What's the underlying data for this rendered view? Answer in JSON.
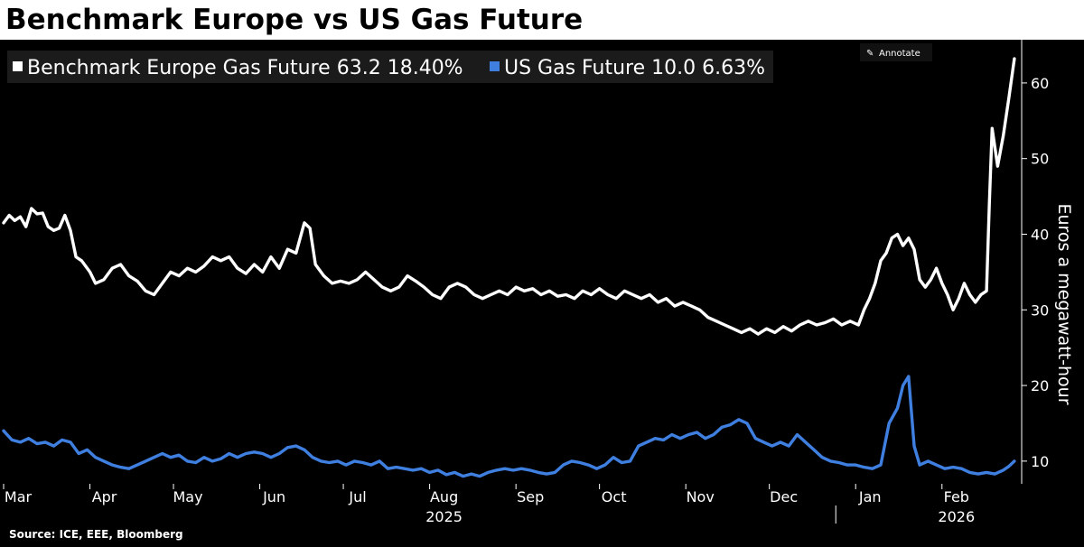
{
  "chart_data": {
    "type": "line",
    "title": "Benchmark Europe vs US Gas Future",
    "ylabel": "Euros a megawatt-hour",
    "ylim": [
      7,
      65
    ],
    "yticks": [
      10,
      20,
      30,
      40,
      50,
      60
    ],
    "x_range": [
      "2025-03-01",
      "2026-02-28"
    ],
    "month_labels": [
      {
        "label": "Mar",
        "date": "2025-03-01"
      },
      {
        "label": "Apr",
        "date": "2025-04-01"
      },
      {
        "label": "May",
        "date": "2025-05-01"
      },
      {
        "label": "Jun",
        "date": "2025-06-01"
      },
      {
        "label": "Jul",
        "date": "2025-07-01"
      },
      {
        "label": "Aug",
        "date": "2025-08-01"
      },
      {
        "label": "Sep",
        "date": "2025-09-01"
      },
      {
        "label": "Oct",
        "date": "2025-10-01"
      },
      {
        "label": "Nov",
        "date": "2025-11-01"
      },
      {
        "label": "Dec",
        "date": "2025-12-01"
      },
      {
        "label": "Jan",
        "date": "2026-01-01"
      },
      {
        "label": "Feb",
        "date": "2026-02-01"
      }
    ],
    "year_labels": [
      {
        "label": "2025",
        "date": "2025-08-01"
      },
      {
        "label": "2026",
        "date": "2026-02-01"
      }
    ],
    "year_divider": "2026-01-01",
    "grid": false,
    "legend_position": "top-left",
    "series": [
      {
        "name": "Benchmark Europe Gas Future",
        "last_value": "63.2",
        "change": "18.40%",
        "color": "#ffffff",
        "points": [
          [
            "2025-03-01",
            41.5
          ],
          [
            "2025-03-03",
            42.5
          ],
          [
            "2025-03-05",
            41.8
          ],
          [
            "2025-03-07",
            42.3
          ],
          [
            "2025-03-09",
            41.0
          ],
          [
            "2025-03-11",
            43.4
          ],
          [
            "2025-03-13",
            42.7
          ],
          [
            "2025-03-15",
            42.8
          ],
          [
            "2025-03-17",
            41.0
          ],
          [
            "2025-03-19",
            40.5
          ],
          [
            "2025-03-21",
            40.8
          ],
          [
            "2025-03-23",
            42.5
          ],
          [
            "2025-03-25",
            40.5
          ],
          [
            "2025-03-27",
            37.0
          ],
          [
            "2025-03-29",
            36.5
          ],
          [
            "2025-04-01",
            35.0
          ],
          [
            "2025-04-03",
            33.5
          ],
          [
            "2025-04-06",
            34.0
          ],
          [
            "2025-04-09",
            35.5
          ],
          [
            "2025-04-12",
            36.0
          ],
          [
            "2025-04-15",
            34.5
          ],
          [
            "2025-04-18",
            33.8
          ],
          [
            "2025-04-21",
            32.5
          ],
          [
            "2025-04-24",
            32.0
          ],
          [
            "2025-04-27",
            33.5
          ],
          [
            "2025-04-30",
            35.0
          ],
          [
            "2025-05-03",
            34.5
          ],
          [
            "2025-05-06",
            35.5
          ],
          [
            "2025-05-09",
            35.0
          ],
          [
            "2025-05-12",
            35.8
          ],
          [
            "2025-05-15",
            37.0
          ],
          [
            "2025-05-18",
            36.5
          ],
          [
            "2025-05-21",
            37.0
          ],
          [
            "2025-05-24",
            35.5
          ],
          [
            "2025-05-27",
            34.8
          ],
          [
            "2025-05-30",
            36.0
          ],
          [
            "2025-06-02",
            35.0
          ],
          [
            "2025-06-05",
            37.0
          ],
          [
            "2025-06-08",
            35.5
          ],
          [
            "2025-06-11",
            38.0
          ],
          [
            "2025-06-14",
            37.5
          ],
          [
            "2025-06-17",
            41.5
          ],
          [
            "2025-06-19",
            40.8
          ],
          [
            "2025-06-21",
            36.0
          ],
          [
            "2025-06-24",
            34.5
          ],
          [
            "2025-06-27",
            33.5
          ],
          [
            "2025-06-30",
            33.8
          ],
          [
            "2025-07-03",
            33.5
          ],
          [
            "2025-07-06",
            34.0
          ],
          [
            "2025-07-09",
            35.0
          ],
          [
            "2025-07-12",
            34.0
          ],
          [
            "2025-07-15",
            33.0
          ],
          [
            "2025-07-18",
            32.5
          ],
          [
            "2025-07-21",
            33.0
          ],
          [
            "2025-07-24",
            34.5
          ],
          [
            "2025-07-27",
            33.8
          ],
          [
            "2025-07-30",
            33.0
          ],
          [
            "2025-08-02",
            32.0
          ],
          [
            "2025-08-05",
            31.5
          ],
          [
            "2025-08-08",
            33.0
          ],
          [
            "2025-08-11",
            33.5
          ],
          [
            "2025-08-14",
            33.0
          ],
          [
            "2025-08-17",
            32.0
          ],
          [
            "2025-08-20",
            31.5
          ],
          [
            "2025-08-23",
            32.0
          ],
          [
            "2025-08-26",
            32.5
          ],
          [
            "2025-08-29",
            32.0
          ],
          [
            "2025-09-01",
            33.0
          ],
          [
            "2025-09-04",
            32.5
          ],
          [
            "2025-09-07",
            32.8
          ],
          [
            "2025-09-10",
            32.0
          ],
          [
            "2025-09-13",
            32.5
          ],
          [
            "2025-09-16",
            31.8
          ],
          [
            "2025-09-19",
            32.0
          ],
          [
            "2025-09-22",
            31.5
          ],
          [
            "2025-09-25",
            32.5
          ],
          [
            "2025-09-28",
            32.0
          ],
          [
            "2025-10-01",
            32.8
          ],
          [
            "2025-10-04",
            32.0
          ],
          [
            "2025-10-07",
            31.5
          ],
          [
            "2025-10-10",
            32.5
          ],
          [
            "2025-10-13",
            32.0
          ],
          [
            "2025-10-16",
            31.5
          ],
          [
            "2025-10-19",
            32.0
          ],
          [
            "2025-10-22",
            31.0
          ],
          [
            "2025-10-25",
            31.5
          ],
          [
            "2025-10-28",
            30.5
          ],
          [
            "2025-10-31",
            31.0
          ],
          [
            "2025-11-03",
            30.5
          ],
          [
            "2025-11-06",
            30.0
          ],
          [
            "2025-11-09",
            29.0
          ],
          [
            "2025-11-12",
            28.5
          ],
          [
            "2025-11-15",
            28.0
          ],
          [
            "2025-11-18",
            27.5
          ],
          [
            "2025-11-21",
            27.0
          ],
          [
            "2025-11-24",
            27.5
          ],
          [
            "2025-11-27",
            26.8
          ],
          [
            "2025-11-30",
            27.5
          ],
          [
            "2025-12-03",
            27.0
          ],
          [
            "2025-12-06",
            27.8
          ],
          [
            "2025-12-09",
            27.2
          ],
          [
            "2025-12-12",
            28.0
          ],
          [
            "2025-12-15",
            28.5
          ],
          [
            "2025-12-18",
            28.0
          ],
          [
            "2025-12-21",
            28.3
          ],
          [
            "2025-12-24",
            28.8
          ],
          [
            "2025-12-27",
            28.0
          ],
          [
            "2025-12-30",
            28.5
          ],
          [
            "2026-01-02",
            28.0
          ],
          [
            "2026-01-04",
            30.0
          ],
          [
            "2026-01-06",
            31.5
          ],
          [
            "2026-01-08",
            33.5
          ],
          [
            "2026-01-10",
            36.5
          ],
          [
            "2026-01-12",
            37.5
          ],
          [
            "2026-01-14",
            39.5
          ],
          [
            "2026-01-16",
            40.0
          ],
          [
            "2026-01-18",
            38.5
          ],
          [
            "2026-01-20",
            39.5
          ],
          [
            "2026-01-22",
            38.0
          ],
          [
            "2026-01-24",
            34.0
          ],
          [
            "2026-01-26",
            33.0
          ],
          [
            "2026-01-28",
            34.0
          ],
          [
            "2026-01-30",
            35.5
          ],
          [
            "2026-02-01",
            33.5
          ],
          [
            "2026-02-03",
            32.0
          ],
          [
            "2026-02-05",
            30.0
          ],
          [
            "2026-02-07",
            31.5
          ],
          [
            "2026-02-09",
            33.5
          ],
          [
            "2026-02-11",
            32.0
          ],
          [
            "2026-02-13",
            31.0
          ],
          [
            "2026-02-15",
            32.0
          ],
          [
            "2026-02-17",
            32.5
          ],
          [
            "2026-02-18",
            44.0
          ],
          [
            "2026-02-19",
            54.0
          ],
          [
            "2026-02-21",
            49.0
          ],
          [
            "2026-02-23",
            53.0
          ],
          [
            "2026-02-25",
            58.0
          ],
          [
            "2026-02-27",
            63.2
          ]
        ]
      },
      {
        "name": "US Gas Future",
        "last_value": "10.0",
        "change": "6.63%",
        "color": "#3f7fe0",
        "points": [
          [
            "2025-03-01",
            14.0
          ],
          [
            "2025-03-04",
            12.8
          ],
          [
            "2025-03-07",
            12.5
          ],
          [
            "2025-03-10",
            13.0
          ],
          [
            "2025-03-13",
            12.3
          ],
          [
            "2025-03-16",
            12.5
          ],
          [
            "2025-03-19",
            12.0
          ],
          [
            "2025-03-22",
            12.8
          ],
          [
            "2025-03-25",
            12.5
          ],
          [
            "2025-03-28",
            11.0
          ],
          [
            "2025-03-31",
            11.5
          ],
          [
            "2025-04-03",
            10.5
          ],
          [
            "2025-04-06",
            10.0
          ],
          [
            "2025-04-09",
            9.5
          ],
          [
            "2025-04-12",
            9.2
          ],
          [
            "2025-04-15",
            9.0
          ],
          [
            "2025-04-18",
            9.5
          ],
          [
            "2025-04-21",
            10.0
          ],
          [
            "2025-04-24",
            10.5
          ],
          [
            "2025-04-27",
            11.0
          ],
          [
            "2025-04-30",
            10.5
          ],
          [
            "2025-05-03",
            10.8
          ],
          [
            "2025-05-06",
            10.0
          ],
          [
            "2025-05-09",
            9.8
          ],
          [
            "2025-05-12",
            10.5
          ],
          [
            "2025-05-15",
            10.0
          ],
          [
            "2025-05-18",
            10.3
          ],
          [
            "2025-05-21",
            11.0
          ],
          [
            "2025-05-24",
            10.5
          ],
          [
            "2025-05-27",
            11.0
          ],
          [
            "2025-05-30",
            11.2
          ],
          [
            "2025-06-02",
            11.0
          ],
          [
            "2025-06-05",
            10.5
          ],
          [
            "2025-06-08",
            11.0
          ],
          [
            "2025-06-11",
            11.8
          ],
          [
            "2025-06-14",
            12.0
          ],
          [
            "2025-06-17",
            11.5
          ],
          [
            "2025-06-20",
            10.5
          ],
          [
            "2025-06-23",
            10.0
          ],
          [
            "2025-06-26",
            9.8
          ],
          [
            "2025-06-29",
            10.0
          ],
          [
            "2025-07-02",
            9.5
          ],
          [
            "2025-07-05",
            10.0
          ],
          [
            "2025-07-08",
            9.8
          ],
          [
            "2025-07-11",
            9.5
          ],
          [
            "2025-07-14",
            10.0
          ],
          [
            "2025-07-17",
            9.0
          ],
          [
            "2025-07-20",
            9.2
          ],
          [
            "2025-07-23",
            9.0
          ],
          [
            "2025-07-26",
            8.8
          ],
          [
            "2025-07-29",
            9.0
          ],
          [
            "2025-08-01",
            8.5
          ],
          [
            "2025-08-04",
            8.8
          ],
          [
            "2025-08-07",
            8.2
          ],
          [
            "2025-08-10",
            8.5
          ],
          [
            "2025-08-13",
            8.0
          ],
          [
            "2025-08-16",
            8.3
          ],
          [
            "2025-08-19",
            8.0
          ],
          [
            "2025-08-22",
            8.5
          ],
          [
            "2025-08-25",
            8.8
          ],
          [
            "2025-08-28",
            9.0
          ],
          [
            "2025-08-31",
            8.8
          ],
          [
            "2025-09-03",
            9.0
          ],
          [
            "2025-09-06",
            8.8
          ],
          [
            "2025-09-09",
            8.5
          ],
          [
            "2025-09-12",
            8.3
          ],
          [
            "2025-09-15",
            8.5
          ],
          [
            "2025-09-18",
            9.5
          ],
          [
            "2025-09-21",
            10.0
          ],
          [
            "2025-09-24",
            9.8
          ],
          [
            "2025-09-27",
            9.5
          ],
          [
            "2025-09-30",
            9.0
          ],
          [
            "2025-10-03",
            9.5
          ],
          [
            "2025-10-06",
            10.5
          ],
          [
            "2025-10-09",
            9.8
          ],
          [
            "2025-10-12",
            10.0
          ],
          [
            "2025-10-15",
            12.0
          ],
          [
            "2025-10-18",
            12.5
          ],
          [
            "2025-10-21",
            13.0
          ],
          [
            "2025-10-24",
            12.8
          ],
          [
            "2025-10-27",
            13.5
          ],
          [
            "2025-10-30",
            13.0
          ],
          [
            "2025-11-02",
            13.5
          ],
          [
            "2025-11-05",
            13.8
          ],
          [
            "2025-11-08",
            13.0
          ],
          [
            "2025-11-11",
            13.5
          ],
          [
            "2025-11-14",
            14.5
          ],
          [
            "2025-11-17",
            14.8
          ],
          [
            "2025-11-20",
            15.5
          ],
          [
            "2025-11-23",
            15.0
          ],
          [
            "2025-11-26",
            13.0
          ],
          [
            "2025-11-29",
            12.5
          ],
          [
            "2025-12-02",
            12.0
          ],
          [
            "2025-12-05",
            12.5
          ],
          [
            "2025-12-08",
            12.0
          ],
          [
            "2025-12-11",
            13.5
          ],
          [
            "2025-12-14",
            12.5
          ],
          [
            "2025-12-17",
            11.5
          ],
          [
            "2025-12-20",
            10.5
          ],
          [
            "2025-12-23",
            10.0
          ],
          [
            "2025-12-26",
            9.8
          ],
          [
            "2025-12-29",
            9.5
          ],
          [
            "2026-01-01",
            9.5
          ],
          [
            "2026-01-04",
            9.2
          ],
          [
            "2026-01-07",
            9.0
          ],
          [
            "2026-01-10",
            9.5
          ],
          [
            "2026-01-13",
            15.0
          ],
          [
            "2026-01-16",
            17.0
          ],
          [
            "2026-01-18",
            20.0
          ],
          [
            "2026-01-20",
            21.2
          ],
          [
            "2026-01-22",
            12.0
          ],
          [
            "2026-01-24",
            9.5
          ],
          [
            "2026-01-27",
            10.0
          ],
          [
            "2026-01-30",
            9.5
          ],
          [
            "2026-02-02",
            9.0
          ],
          [
            "2026-02-05",
            9.2
          ],
          [
            "2026-02-08",
            9.0
          ],
          [
            "2026-02-11",
            8.5
          ],
          [
            "2026-02-14",
            8.3
          ],
          [
            "2026-02-17",
            8.5
          ],
          [
            "2026-02-20",
            8.3
          ],
          [
            "2026-02-23",
            8.8
          ],
          [
            "2026-02-25",
            9.3
          ],
          [
            "2026-02-27",
            10.0
          ]
        ]
      }
    ]
  },
  "annotate_label": "Annotate",
  "annotate_icon": "pencil-icon",
  "source": "Source: ICE, EEE, Bloomberg",
  "colors": {
    "background": "#000000",
    "title_bar": "#ffffff",
    "europe": "#ffffff",
    "us": "#3f7fe0",
    "legend_bg": "#1b1b1b"
  }
}
